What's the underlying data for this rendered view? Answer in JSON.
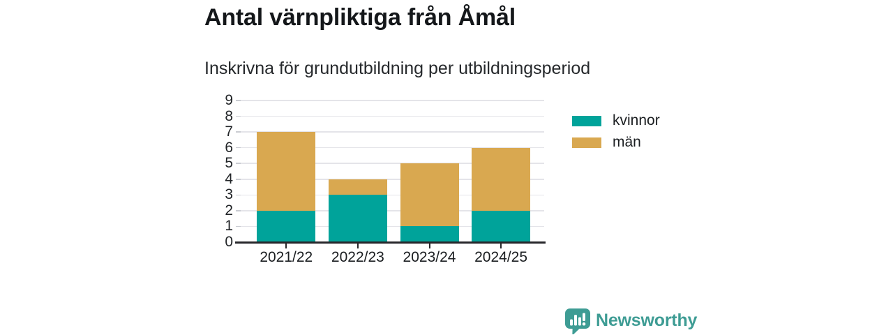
{
  "header": {
    "title": "Antal värnpliktiga från Åmål",
    "subtitle": "Inskrivna för grundutbildning per utbildningsperiod"
  },
  "chart_data": {
    "type": "bar",
    "stacked": true,
    "title": "Antal värnpliktiga från Åmål",
    "subtitle": "Inskrivna för grundutbildning per utbildningsperiod",
    "categories": [
      "2021/22",
      "2022/23",
      "2023/24",
      "2024/25"
    ],
    "series": [
      {
        "name": "kvinnor",
        "color": "#00A39A",
        "values": [
          2,
          3,
          1,
          2
        ]
      },
      {
        "name": "män",
        "color": "#D9A850",
        "values": [
          5,
          1,
          4,
          4
        ]
      }
    ],
    "stack_totals": [
      7,
      4,
      5,
      6
    ],
    "xlabel": "",
    "ylabel": "",
    "ylim": [
      0,
      9
    ],
    "yticks": [
      0,
      1,
      2,
      3,
      4,
      5,
      6,
      7,
      8,
      9
    ],
    "grid": true,
    "legend_position": "right"
  },
  "legend": {
    "items": [
      {
        "label": "kvinnor",
        "color": "#00A39A"
      },
      {
        "label": "män",
        "color": "#D9A850"
      }
    ]
  },
  "footer": {
    "brand": "Newsworthy",
    "brand_color": "#3E9C94"
  }
}
